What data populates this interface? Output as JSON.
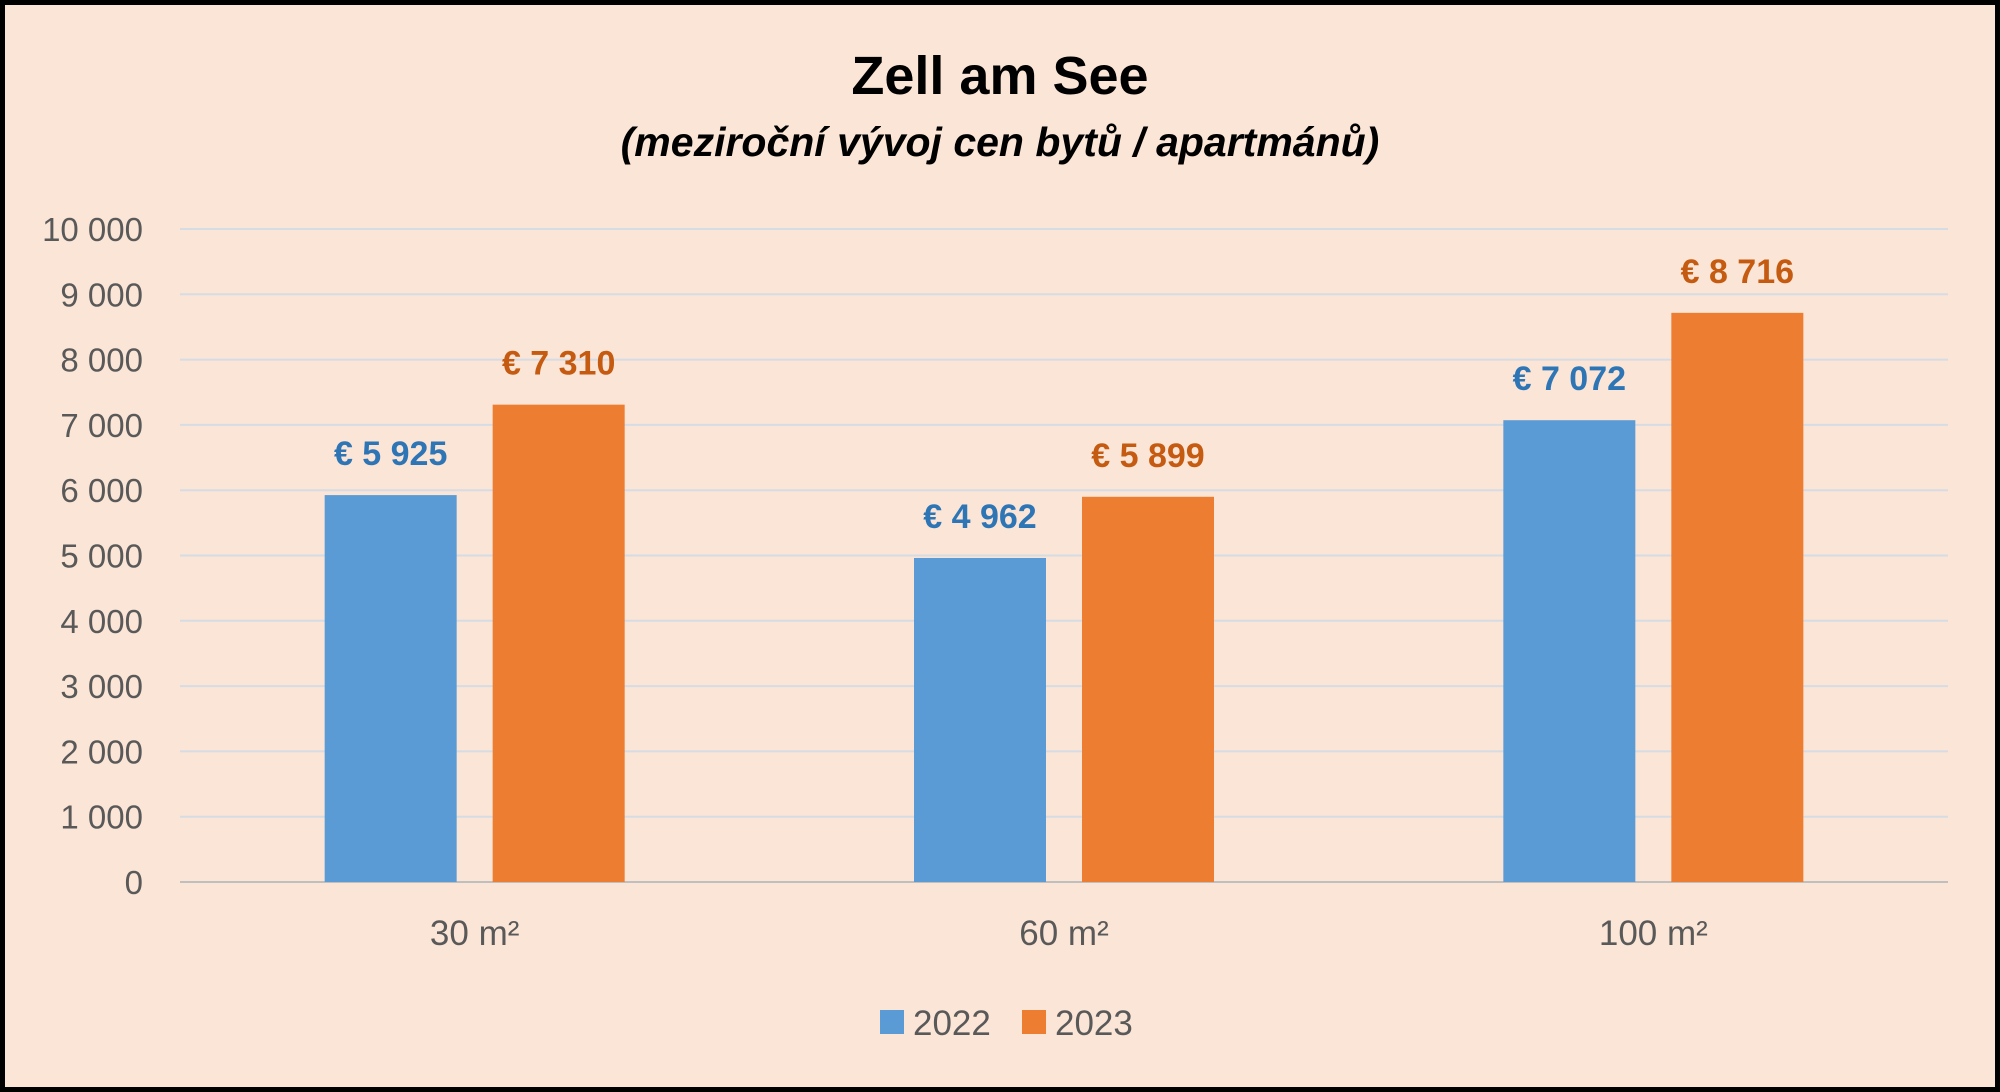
{
  "chart_data": {
    "type": "bar",
    "title": "Zell am See",
    "subtitle": "(meziroční vývoj cen bytů / apartmánů)",
    "categories": [
      "30 m²",
      "60 m²",
      "100 m²"
    ],
    "series": [
      {
        "name": "2022",
        "color": "#5b9bd5",
        "label_color": "#2e75b6",
        "values": [
          5925,
          4962,
          7072
        ],
        "labels": [
          "€ 5 925",
          "€ 4 962",
          "€ 7 072"
        ]
      },
      {
        "name": "2023",
        "color": "#ed7d31",
        "label_color": "#c55a11",
        "values": [
          7310,
          5899,
          8716
        ],
        "labels": [
          "€ 7 310",
          "€ 5 899",
          "€ 8 716"
        ]
      }
    ],
    "yticks": [
      "0",
      "1 000",
      "2 000",
      "3 000",
      "4 000",
      "5 000",
      "6 000",
      "7 000",
      "8 000",
      "9 000",
      "10 000"
    ],
    "ylim": [
      0,
      10000
    ],
    "grid": true,
    "legend_position": "bottom"
  }
}
